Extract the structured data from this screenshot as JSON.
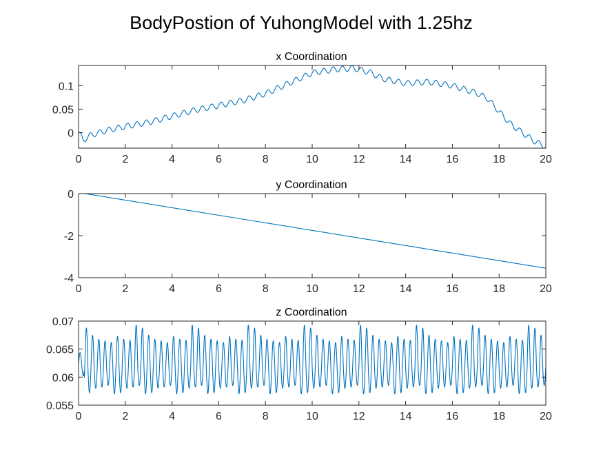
{
  "figure_title": "BodyPostion of YuhongModel with 1.25hz",
  "colors": {
    "series": "#0072BD",
    "axes": "#262626",
    "background": "#ffffff"
  },
  "chart_data": [
    {
      "type": "line",
      "title": "x Coordination",
      "xlabel": "",
      "ylabel": "",
      "xlim": [
        0,
        20
      ],
      "ylim": [
        -0.033,
        0.143
      ],
      "xticks": [
        0,
        2,
        4,
        6,
        8,
        10,
        12,
        14,
        16,
        18,
        20
      ],
      "xtick_labels": [
        "0",
        "2",
        "4",
        "6",
        "8",
        "10",
        "12",
        "14",
        "16",
        "18",
        "20"
      ],
      "yticks": [
        0,
        0.05,
        0.1
      ],
      "ytick_labels": [
        "0",
        "0.05",
        "0.1"
      ],
      "grid": false,
      "series": [
        {
          "color": "#0072BD",
          "x": [
            0,
            0.2,
            0.5,
            1,
            1.5,
            2,
            3,
            4,
            5,
            6,
            7,
            8,
            9,
            10,
            11,
            11.8,
            12.5,
            13,
            14,
            15,
            16,
            17,
            17.5,
            18,
            18.5,
            19,
            19.5,
            20
          ],
          "y": [
            0,
            -0.016,
            -0.006,
            0.002,
            0.008,
            0.013,
            0.022,
            0.035,
            0.048,
            0.058,
            0.068,
            0.083,
            0.105,
            0.127,
            0.135,
            0.137,
            0.128,
            0.115,
            0.105,
            0.108,
            0.1,
            0.085,
            0.073,
            0.045,
            0.018,
            0,
            -0.018,
            -0.03
          ],
          "oscillation": {
            "amplitude": 0.006,
            "frequency_hz": 2.5
          }
        }
      ]
    },
    {
      "type": "line",
      "title": "y Coordination",
      "xlabel": "",
      "ylabel": "",
      "xlim": [
        0,
        20
      ],
      "ylim": [
        -4,
        0
      ],
      "xticks": [
        0,
        2,
        4,
        6,
        8,
        10,
        12,
        14,
        16,
        18,
        20
      ],
      "xtick_labels": [
        "0",
        "2",
        "4",
        "6",
        "8",
        "10",
        "12",
        "14",
        "16",
        "18",
        "20"
      ],
      "yticks": [
        -4,
        -2,
        0
      ],
      "ytick_labels": [
        "-4",
        "-2",
        "0"
      ],
      "grid": false,
      "series": [
        {
          "color": "#0072BD",
          "x": [
            0,
            20
          ],
          "y": [
            0.05,
            -3.55
          ]
        }
      ]
    },
    {
      "type": "line",
      "title": "z Coordination",
      "xlabel": "",
      "ylabel": "",
      "xlim": [
        0,
        20
      ],
      "ylim": [
        0.055,
        0.07
      ],
      "xticks": [
        0,
        2,
        4,
        6,
        8,
        10,
        12,
        14,
        16,
        18,
        20
      ],
      "xtick_labels": [
        "0",
        "2",
        "4",
        "6",
        "8",
        "10",
        "12",
        "14",
        "16",
        "18",
        "20"
      ],
      "yticks": [
        0.055,
        0.06,
        0.065,
        0.07
      ],
      "ytick_labels": [
        "0.055",
        "0.06",
        "0.065",
        "0.07"
      ],
      "grid": false,
      "series": [
        {
          "color": "#0072BD",
          "x_start": 0,
          "x_end": 20,
          "mean": 0.0618,
          "oscillation": {
            "amplitude": 0.0042,
            "frequency_hz": 3.75
          },
          "peaks": [
            0.0693,
            0.0688,
            0.0675,
            0.0668,
            0.0665,
            0.0662,
            0.0673,
            0.0668,
            0.0666
          ],
          "troughs": [
            0.057,
            0.0572,
            0.058,
            0.0582,
            0.0585
          ]
        }
      ]
    }
  ]
}
